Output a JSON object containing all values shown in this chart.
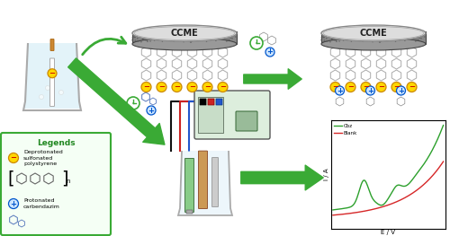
{
  "bg_color": "#ffffff",
  "ccme_text": "CCME",
  "legend_title": "Legends",
  "legend_item1": "Deprotonated\nsulfonated\npolystyrene",
  "legend_item2": "Protonated\ncarbendazim",
  "graph_xlabel": "E / V",
  "graph_ylabel": "I / A",
  "graph_legend": [
    "Cbz",
    "Blank"
  ],
  "graph_line_colors": [
    "#2ca02c",
    "#d62728"
  ],
  "arrow_color": "#3aaa35",
  "neg_circle_face": "#FFD700",
  "neg_circle_edge": "#CC8800",
  "pos_circle_face": "#cce5ff",
  "pos_circle_edge": "#0055CC",
  "ccme_disk_face": "#888888",
  "ccme_disk_edge": "#444444",
  "ccme_top_face": "#cccccc",
  "ccme_label_color": "#222222",
  "beaker_face": "#e8f4fb",
  "beaker_edge": "#aaaaaa",
  "liquid_face": "#c8e8f5",
  "inst_face": "#ddeedd",
  "inst_edge": "#555555",
  "inst_screen_face": "#99bb99",
  "wire_black": "#111111",
  "wire_red": "#cc2222",
  "wire_blue": "#2255cc",
  "electrode_green": "#88cc88",
  "electrode_tan": "#cc9955",
  "electrode_silver": "#cccccc"
}
